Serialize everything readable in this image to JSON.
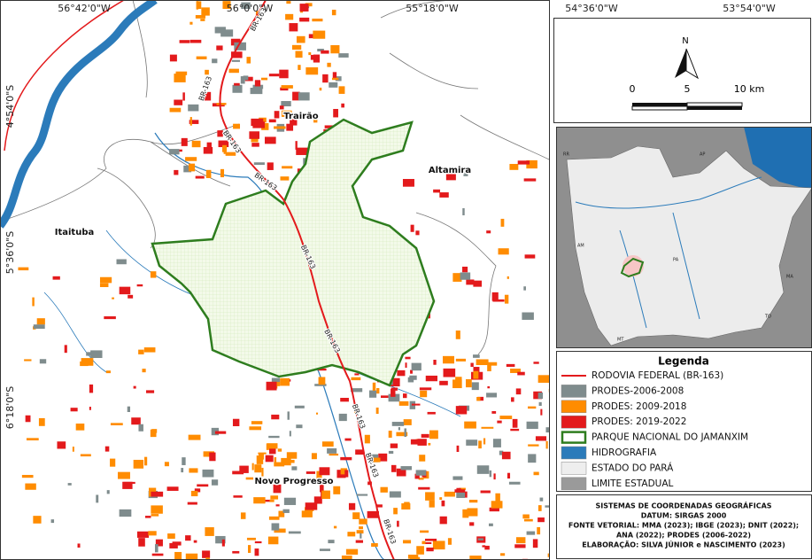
{
  "map": {
    "coordinate_labels": {
      "top": [
        "56°42'0\"W",
        "56°0'0\"W",
        "55°18'0\"W",
        "54°36'0\"W",
        "53°54'0\"W"
      ],
      "left": [
        "4°54'0\"S",
        "5°36'0\"S",
        "6°18'0\"S"
      ]
    },
    "places": [
      "Trairão",
      "Altamira",
      "Itaituba",
      "Novo Progresso"
    ],
    "roads": [
      "BR-163",
      "BR-163",
      "BR-163",
      "BR-163",
      "BR-163",
      "BR-163",
      "BR-163",
      "BR-163",
      "BR-163"
    ],
    "north": {
      "label": "N"
    },
    "scale_bar": {
      "labels": [
        "0",
        "5",
        "10 km"
      ]
    },
    "inset": {
      "labels": [
        "RR",
        "AP",
        "AM",
        "PA",
        "MT",
        "TO",
        "MA"
      ]
    },
    "legend": {
      "title": "Legenda",
      "items": [
        {
          "label": "RODOVIA FEDERAL (BR-163)",
          "color": "#e31a1c"
        },
        {
          "label": "PRODES-2006-2008",
          "color": "#7f8c8d"
        },
        {
          "label": "PRODES: 2009-2018",
          "color": "#ff8c00"
        },
        {
          "label": "PRODES: 2019-2022",
          "color": "#e31a1c"
        },
        {
          "label": "PARQUE NACIONAL DO JAMANXIM",
          "color": "#2e7d1e"
        },
        {
          "label": "HIDROGRAFIA",
          "color": "#2b7bba"
        },
        {
          "label": "ESTADO DO PARÁ",
          "color": "#eeeeee"
        },
        {
          "label": "LIMITE ESTADUAL",
          "color": "#9a9a9a"
        }
      ]
    },
    "credits": [
      "SISTEMAS DE COORDENADAS GEOGRÁFICAS",
      "DATUM: SIRGAS 2000",
      "FONTE VETORIAL: MMA (2023); IBGE (2023); DNIT (2022);",
      "ANA (2022); PRODES (2006-2022)",
      "ELABORAÇÃO: SILVA JÚNIOR e NASCIMENTO (2023)"
    ]
  }
}
